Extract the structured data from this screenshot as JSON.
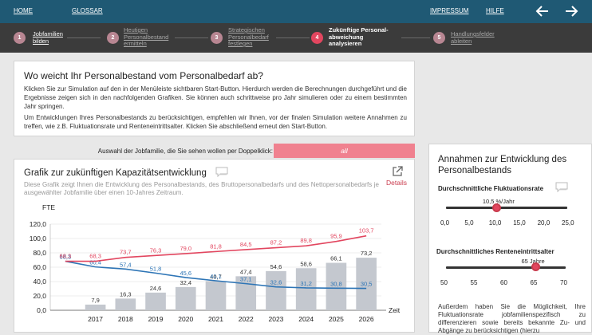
{
  "topbar": {
    "home": "HOME",
    "glossar": "GLOSSAR",
    "impressum": "IMPRESSUM",
    "hilfe": "HILFE",
    "back_icon": "arrow-left-icon",
    "forward_icon": "arrow-right-icon"
  },
  "steps": [
    {
      "num": "1",
      "label1": "Jobfamilien",
      "label2": "bilden",
      "label3": ""
    },
    {
      "num": "2",
      "label1": "Heutigen",
      "label2": "Personalbestand",
      "label3": "ermitteln"
    },
    {
      "num": "3",
      "label1": "Strategischen",
      "label2": "Personalbedarf",
      "label3": "festlegen"
    },
    {
      "num": "4",
      "label1": "Zukünftige Personal-",
      "label2": "abweichung",
      "label3": "analysieren"
    },
    {
      "num": "5",
      "label1": "Handlungsfelder",
      "label2": "ableiten",
      "label3": ""
    }
  ],
  "intro": {
    "title": "Wo weicht Ihr Personalbestand vom Personalbedarf ab?",
    "para1": "Klicken Sie zur Simulation auf den in der Menüleiste sichtbaren Start-Button. Hierdurch werden die Berechnungen durchgeführt und die Ergebnisse zeigen sich in den nachfolgenden Grafiken. Sie können auch schrittweise pro Jahr simulieren oder zu einem bestimmten Jahr springen.",
    "para2": "Um Entwicklungen Ihres Personalbestands zu berücksichtigen, empfehlen wir Ihnen, vor der finalen Simulation weitere Annahmen zu treffen, wie z.B. Fluktuationsrate und Renteneintrittsalter. Klicken Sie abschließend erneut den Start-Button."
  },
  "selector": {
    "label": "Auswahl der Jobfamilie, die Sie sehen wollen per Doppelklick:",
    "value": "all"
  },
  "chart_panel": {
    "title": "Grafik zur zukünftigen Kapazitätsentwicklung",
    "details": "Details",
    "description": "Diese Grafik zeigt Ihnen die Entwicklung des Personalbestands, des Bruttopersonalbedarfs und des Nettopersonalbedarfs je ausgewählter Jobfamilie über einen 10-Jahres Zeitraum."
  },
  "chart_data": {
    "type": "bar",
    "ylabel": "FTE",
    "xlabel": "Zeit",
    "ylim": [
      0,
      120
    ],
    "yticks": [
      "0,0",
      "20,0",
      "40,0",
      "60,0",
      "80,0",
      "100,0",
      "120,0"
    ],
    "x": [
      "2016",
      "2017",
      "2018",
      "2019",
      "2020",
      "2021",
      "2022",
      "2023",
      "2024",
      "2025",
      "2026"
    ],
    "xtick_labels": [
      "2017",
      "2018",
      "2019",
      "2020",
      "2021",
      "2022",
      "2023",
      "2024",
      "2025",
      "2026"
    ],
    "bars": {
      "values": [
        null,
        7.9,
        16.3,
        24.6,
        32.4,
        40.7,
        47.4,
        54.6,
        58.6,
        66.1,
        73.2
      ],
      "labels": [
        "",
        "7,9",
        "16,3",
        "24,6",
        "32,4",
        "40,7",
        "47,4",
        "54,6",
        "58,6",
        "66,1",
        "73,2"
      ],
      "color": "#c4c8cf"
    },
    "red_line": {
      "values": [
        68.3,
        68.3,
        73.7,
        76.3,
        79.0,
        81.8,
        84.5,
        87.2,
        89.8,
        95.9,
        103.7
      ],
      "labels": [
        "68,3",
        "68,3",
        "73,7",
        "76,3",
        "79,0",
        "81,8",
        "84,5",
        "87,2",
        "89,8",
        "95,9",
        "103,7"
      ],
      "color": "#e2465f"
    },
    "blue_line": {
      "values": [
        68.3,
        60.4,
        57.4,
        51.8,
        45.6,
        41.1,
        37.1,
        32.6,
        31.2,
        30.8,
        30.5
      ],
      "labels": [
        "68,3",
        "60,4",
        "57,4",
        "51,8",
        "45,6",
        "41,1",
        "37,1",
        "32,6",
        "31,2",
        "30,8",
        "30,5"
      ],
      "color": "#2e75b6"
    }
  },
  "assumptions": {
    "title": "Annahmen zur Entwicklung des Personalbestands",
    "fluct": {
      "label": "Durchschnittliche Fluktuationsrate",
      "value": 10.5,
      "value_label": "10,5 %/Jahr",
      "min": 0,
      "max": 25,
      "ticks": [
        "0,0",
        "5,0",
        "10,0",
        "15,0",
        "20,0",
        "25,0"
      ]
    },
    "retire": {
      "label": "Durchschnittliches Renteneintrittsalter",
      "value": 65,
      "value_label": "65 Jahre",
      "min": 50,
      "max": 70,
      "ticks": [
        "50",
        "55",
        "60",
        "65",
        "70"
      ]
    },
    "footer": "Außerdem haben Sie die Möglichkeit, Ihre Fluktuationsrate jobfamilienspezifisch zu differenzieren sowie bereits bekannte Zu- und Abgänge zu berücksichtigen (hierzu"
  }
}
